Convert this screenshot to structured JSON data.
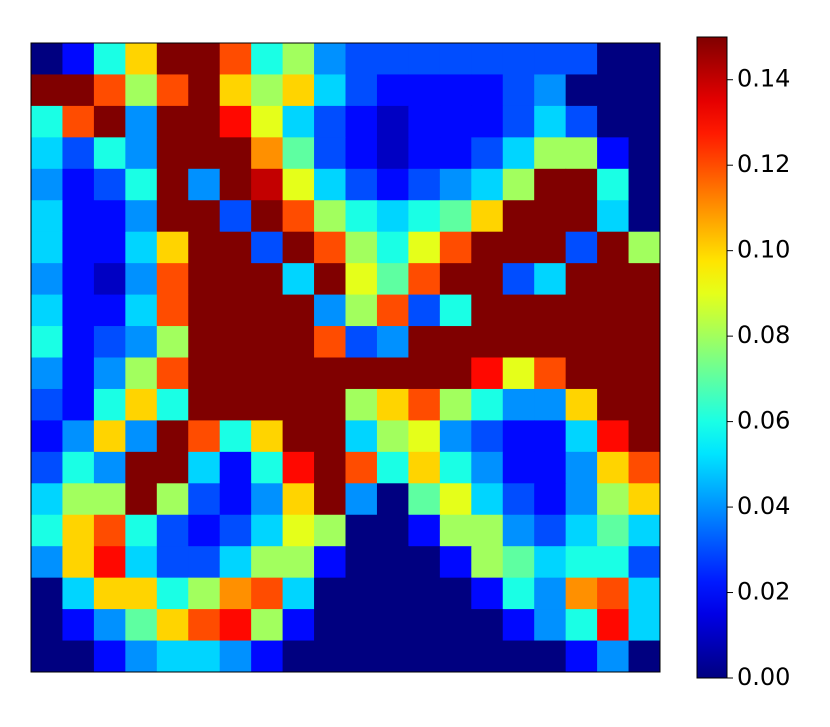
{
  "chart_data": {
    "type": "heatmap",
    "colormap": "jet",
    "clim": [
      0,
      0.15
    ],
    "cticks": [
      {
        "value": 0,
        "label": "0.00"
      },
      {
        "value": 0.02,
        "label": "0.02"
      },
      {
        "value": 0.04,
        "label": "0.04"
      },
      {
        "value": 0.06,
        "label": "0.06"
      },
      {
        "value": 0.08,
        "label": "0.08"
      },
      {
        "value": 0.1,
        "label": "0.10"
      },
      {
        "value": 0.12,
        "label": "0.12"
      },
      {
        "value": 0.14,
        "label": "0.14"
      }
    ],
    "values": [
      [
        0,
        0.02,
        0.06,
        0.1,
        0.15,
        0.15,
        0.12,
        0.06,
        0.08,
        0.04,
        0.03,
        0.03,
        0.03,
        0.03,
        0.03,
        0.03,
        0.03,
        0.03,
        0,
        0
      ],
      [
        0.15,
        0.15,
        0.12,
        0.08,
        0.12,
        0.15,
        0.1,
        0.08,
        0.1,
        0.05,
        0.03,
        0.02,
        0.02,
        0.02,
        0.02,
        0.03,
        0.04,
        0,
        0,
        0
      ],
      [
        0.06,
        0.12,
        0.15,
        0.04,
        0.15,
        0.15,
        0.13,
        0.09,
        0.05,
        0.03,
        0.02,
        0.01,
        0.02,
        0.02,
        0.02,
        0.03,
        0.05,
        0.03,
        0,
        0
      ],
      [
        0.05,
        0.03,
        0.06,
        0.04,
        0.15,
        0.15,
        0.15,
        0.11,
        0.07,
        0.03,
        0.02,
        0.01,
        0.02,
        0.02,
        0.03,
        0.05,
        0.08,
        0.08,
        0.02,
        0
      ],
      [
        0.04,
        0.02,
        0.03,
        0.06,
        0.15,
        0.04,
        0.15,
        0.14,
        0.09,
        0.05,
        0.03,
        0.02,
        0.03,
        0.04,
        0.05,
        0.08,
        0.15,
        0.15,
        0.06,
        0
      ],
      [
        0.05,
        0.02,
        0.02,
        0.04,
        0.15,
        0.15,
        0.03,
        0.15,
        0.12,
        0.08,
        0.06,
        0.05,
        0.06,
        0.07,
        0.1,
        0.15,
        0.15,
        0.15,
        0.05,
        0
      ],
      [
        0.05,
        0.02,
        0.02,
        0.05,
        0.1,
        0.15,
        0.15,
        0.03,
        0.15,
        0.12,
        0.08,
        0.06,
        0.09,
        0.12,
        0.15,
        0.15,
        0.15,
        0.03,
        0.15,
        0.08
      ],
      [
        0.04,
        0.02,
        0.01,
        0.04,
        0.12,
        0.15,
        0.15,
        0.15,
        0.05,
        0.15,
        0.09,
        0.07,
        0.12,
        0.15,
        0.15,
        0.03,
        0.05,
        0.15,
        0.15,
        0.15
      ],
      [
        0.05,
        0.02,
        0.02,
        0.05,
        0.12,
        0.15,
        0.15,
        0.15,
        0.15,
        0.04,
        0.08,
        0.12,
        0.03,
        0.06,
        0.15,
        0.15,
        0.15,
        0.15,
        0.15,
        0.15
      ],
      [
        0.06,
        0.02,
        0.03,
        0.04,
        0.08,
        0.15,
        0.15,
        0.15,
        0.15,
        0.12,
        0.03,
        0.04,
        0.15,
        0.15,
        0.15,
        0.15,
        0.15,
        0.15,
        0.15,
        0.15
      ],
      [
        0.04,
        0.02,
        0.04,
        0.08,
        0.12,
        0.15,
        0.15,
        0.15,
        0.15,
        0.15,
        0.15,
        0.15,
        0.15,
        0.15,
        0.13,
        0.09,
        0.12,
        0.15,
        0.15,
        0.15
      ],
      [
        0.03,
        0.02,
        0.06,
        0.1,
        0.06,
        0.15,
        0.15,
        0.15,
        0.15,
        0.15,
        0.08,
        0.1,
        0.12,
        0.08,
        0.06,
        0.04,
        0.04,
        0.1,
        0.15,
        0.15
      ],
      [
        0.02,
        0.04,
        0.1,
        0.04,
        0.15,
        0.12,
        0.06,
        0.1,
        0.15,
        0.15,
        0.05,
        0.08,
        0.09,
        0.04,
        0.03,
        0.02,
        0.02,
        0.05,
        0.13,
        0.15
      ],
      [
        0.03,
        0.06,
        0.04,
        0.15,
        0.15,
        0.05,
        0.02,
        0.06,
        0.13,
        0.15,
        0.12,
        0.06,
        0.1,
        0.06,
        0.04,
        0.02,
        0.02,
        0.04,
        0.1,
        0.12
      ],
      [
        0.05,
        0.08,
        0.08,
        0.15,
        0.08,
        0.03,
        0.02,
        0.04,
        0.1,
        0.15,
        0.04,
        0,
        0.07,
        0.09,
        0.05,
        0.03,
        0.02,
        0.04,
        0.08,
        0.1
      ],
      [
        0.06,
        0.1,
        0.12,
        0.06,
        0.03,
        0.02,
        0.03,
        0.05,
        0.09,
        0.08,
        0,
        0,
        0.02,
        0.08,
        0.08,
        0.04,
        0.03,
        0.05,
        0.07,
        0.05
      ],
      [
        0.04,
        0.1,
        0.13,
        0.05,
        0.03,
        0.03,
        0.05,
        0.08,
        0.08,
        0.02,
        0,
        0,
        0,
        0.02,
        0.08,
        0.07,
        0.05,
        0.06,
        0.06,
        0.03
      ],
      [
        0,
        0.05,
        0.1,
        0.1,
        0.06,
        0.08,
        0.11,
        0.12,
        0.05,
        0,
        0,
        0,
        0,
        0,
        0.02,
        0.06,
        0.04,
        0.11,
        0.12,
        0.05
      ],
      [
        0,
        0.02,
        0.04,
        0.07,
        0.1,
        0.12,
        0.13,
        0.08,
        0.02,
        0,
        0,
        0,
        0,
        0,
        0,
        0.02,
        0.04,
        0.06,
        0.13,
        0.05
      ],
      [
        0,
        0,
        0.02,
        0.04,
        0.05,
        0.05,
        0.04,
        0.02,
        0,
        0,
        0,
        0,
        0,
        0,
        0,
        0,
        0,
        0.02,
        0.04,
        0
      ]
    ]
  }
}
